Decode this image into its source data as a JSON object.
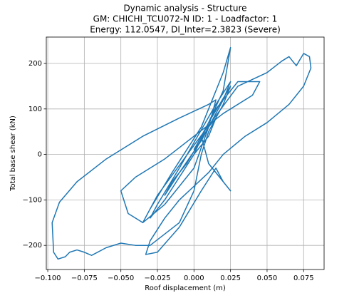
{
  "chart_data": {
    "type": "line",
    "title": [
      "Dynamic analysis - Structure",
      "GM: CHICHI_TCU072-N ID: 1 -  Loadfactor: 1",
      "Energy: 112.0547, DI_Inter=2.3823 (Severe)"
    ],
    "x_label": "Roof displacement (m)",
    "y_label": "Total base shear (kN)",
    "color": "#1f77b4",
    "grid": true,
    "x": [
      0,
      0.01,
      0.015,
      0.01,
      -0.005,
      -0.015,
      -0.02,
      -0.01,
      0.005,
      0.02,
      0.025,
      0.015,
      -0.01,
      -0.025,
      -0.03,
      -0.02,
      0,
      0.02,
      0.025,
      0.02,
      0.005,
      -0.015,
      -0.03,
      -0.035,
      -0.025,
      0,
      0.03,
      0.05,
      0.06,
      0.065,
      0.07,
      0.075,
      0.079,
      0.08,
      0.075,
      0.065,
      0.05,
      0.035,
      0.02,
      0.01,
      0,
      -0.01,
      -0.02,
      -0.03,
      -0.033,
      -0.025,
      -0.01,
      0.005,
      0.015,
      0.02,
      0.025,
      0.01,
      0.005,
      0.015,
      0.03,
      0.045,
      0.04,
      0.02,
      0,
      -0.02,
      -0.04,
      -0.05,
      -0.045,
      -0.035,
      -0.02,
      0,
      0.01,
      0.015,
      0.01,
      -0.01,
      -0.035,
      -0.06,
      -0.08,
      -0.092,
      -0.097,
      -0.096,
      -0.093,
      -0.088,
      -0.085,
      -0.08,
      -0.075,
      -0.07,
      -0.06,
      -0.05,
      -0.04,
      -0.03,
      -0.01,
      0,
      0.005,
      0.01,
      0.02,
      0.025,
      0.01,
      0
    ],
    "values": [
      0,
      40,
      80,
      60,
      -20,
      -60,
      -90,
      -40,
      30,
      120,
      160,
      110,
      -30,
      -110,
      -140,
      -100,
      0,
      140,
      235,
      180,
      60,
      -40,
      -120,
      -150,
      -90,
      20,
      150,
      180,
      205,
      215,
      195,
      222,
      215,
      190,
      150,
      110,
      70,
      40,
      0,
      -40,
      -70,
      -100,
      -140,
      -190,
      -220,
      -215,
      -160,
      -80,
      -30,
      -60,
      -80,
      -20,
      40,
      100,
      160,
      160,
      130,
      90,
      40,
      -10,
      -50,
      -80,
      -130,
      -150,
      -110,
      -30,
      60,
      120,
      110,
      80,
      40,
      -10,
      -60,
      -105,
      -150,
      -215,
      -230,
      -225,
      -215,
      -210,
      -215,
      -222,
      -205,
      -195,
      -200,
      -200,
      -150,
      -80,
      0,
      50,
      110,
      150,
      70,
      10
    ],
    "xlim": [
      -0.101,
      0.089
    ],
    "ylim": [
      -253,
      258
    ],
    "xticks": [
      {
        "value": -0.1,
        "label": "−0.100"
      },
      {
        "value": -0.075,
        "label": "−0.075"
      },
      {
        "value": -0.05,
        "label": "−0.050"
      },
      {
        "value": -0.025,
        "label": "−0.025"
      },
      {
        "value": 0,
        "label": "0.000"
      },
      {
        "value": 0.025,
        "label": "0.025"
      },
      {
        "value": 0.05,
        "label": "0.050"
      },
      {
        "value": 0.075,
        "label": "0.075"
      }
    ],
    "yticks": [
      {
        "value": -200,
        "label": "−200"
      },
      {
        "value": -100,
        "label": "−100"
      },
      0,
      100,
      200
    ]
  }
}
